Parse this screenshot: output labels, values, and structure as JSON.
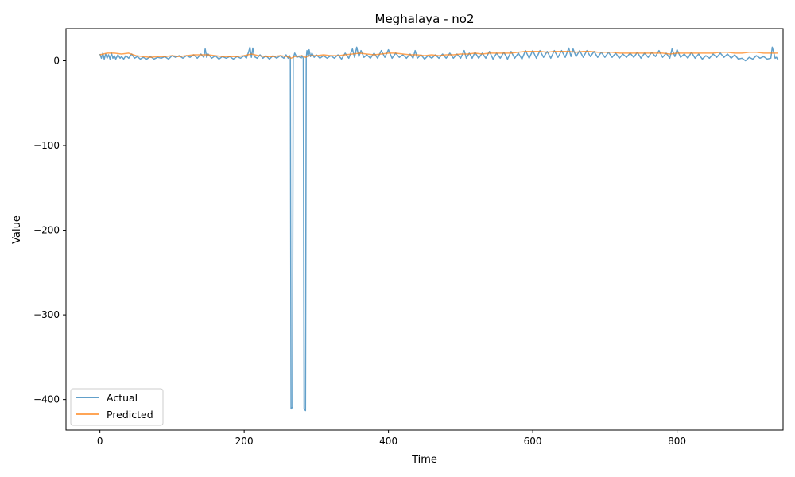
{
  "chart_data": {
    "type": "line",
    "title": "Meghalaya - no2",
    "xlabel": "Time",
    "ylabel": "Value",
    "xlim": [
      -47,
      947
    ],
    "ylim": [
      -436,
      38
    ],
    "x_ticks": [
      0,
      200,
      400,
      600,
      800
    ],
    "y_ticks": [
      0,
      -100,
      -200,
      -300,
      -400
    ],
    "y_tick_labels": [
      "0",
      "−100",
      "−200",
      "−300",
      "−400"
    ],
    "grid": false,
    "legend_position": "lower-left",
    "series": [
      {
        "name": "Actual",
        "color": "#1f77b4",
        "opacity": 0.7,
        "points": [
          [
            0,
            8
          ],
          [
            2,
            3
          ],
          [
            4,
            9
          ],
          [
            6,
            2
          ],
          [
            8,
            8
          ],
          [
            10,
            3
          ],
          [
            12,
            7
          ],
          [
            14,
            2
          ],
          [
            16,
            9
          ],
          [
            18,
            3
          ],
          [
            20,
            6
          ],
          [
            22,
            2
          ],
          [
            25,
            7
          ],
          [
            28,
            3
          ],
          [
            30,
            5
          ],
          [
            33,
            2
          ],
          [
            36,
            6
          ],
          [
            40,
            3
          ],
          [
            44,
            8
          ],
          [
            48,
            3
          ],
          [
            52,
            5
          ],
          [
            56,
            2
          ],
          [
            60,
            4
          ],
          [
            65,
            2
          ],
          [
            70,
            5
          ],
          [
            75,
            2
          ],
          [
            80,
            4
          ],
          [
            85,
            3
          ],
          [
            90,
            5
          ],
          [
            95,
            2
          ],
          [
            100,
            6
          ],
          [
            105,
            4
          ],
          [
            110,
            6
          ],
          [
            115,
            3
          ],
          [
            120,
            6
          ],
          [
            125,
            4
          ],
          [
            130,
            7
          ],
          [
            135,
            3
          ],
          [
            140,
            8
          ],
          [
            144,
            4
          ],
          [
            146,
            14
          ],
          [
            148,
            4
          ],
          [
            150,
            8
          ],
          [
            155,
            3
          ],
          [
            160,
            6
          ],
          [
            165,
            2
          ],
          [
            170,
            5
          ],
          [
            175,
            3
          ],
          [
            180,
            5
          ],
          [
            185,
            2
          ],
          [
            190,
            5
          ],
          [
            195,
            3
          ],
          [
            200,
            6
          ],
          [
            203,
            3
          ],
          [
            206,
            10
          ],
          [
            208,
            16
          ],
          [
            210,
            4
          ],
          [
            212,
            15
          ],
          [
            214,
            5
          ],
          [
            218,
            3
          ],
          [
            222,
            7
          ],
          [
            226,
            3
          ],
          [
            230,
            6
          ],
          [
            235,
            2
          ],
          [
            240,
            6
          ],
          [
            245,
            3
          ],
          [
            250,
            6
          ],
          [
            255,
            3
          ],
          [
            258,
            7
          ],
          [
            261,
            3
          ],
          [
            263,
            6
          ],
          [
            264,
            3
          ],
          [
            265,
            -411
          ],
          [
            267,
            -409
          ],
          [
            268,
            3
          ],
          [
            270,
            9
          ],
          [
            273,
            4
          ],
          [
            276,
            5
          ],
          [
            279,
            3
          ],
          [
            280,
            6
          ],
          [
            282,
            3
          ],
          [
            283,
            -411
          ],
          [
            285,
            -413
          ],
          [
            286,
            3
          ],
          [
            287,
            12
          ],
          [
            289,
            5
          ],
          [
            290,
            13
          ],
          [
            292,
            5
          ],
          [
            294,
            9
          ],
          [
            297,
            4
          ],
          [
            300,
            7
          ],
          [
            305,
            3
          ],
          [
            310,
            6
          ],
          [
            315,
            3
          ],
          [
            320,
            6
          ],
          [
            325,
            3
          ],
          [
            330,
            7
          ],
          [
            335,
            2
          ],
          [
            340,
            9
          ],
          [
            345,
            3
          ],
          [
            350,
            14
          ],
          [
            353,
            4
          ],
          [
            356,
            16
          ],
          [
            359,
            5
          ],
          [
            362,
            12
          ],
          [
            366,
            4
          ],
          [
            370,
            7
          ],
          [
            375,
            3
          ],
          [
            380,
            9
          ],
          [
            385,
            3
          ],
          [
            390,
            12
          ],
          [
            395,
            4
          ],
          [
            400,
            13
          ],
          [
            405,
            3
          ],
          [
            410,
            9
          ],
          [
            415,
            4
          ],
          [
            420,
            7
          ],
          [
            425,
            3
          ],
          [
            430,
            8
          ],
          [
            434,
            3
          ],
          [
            437,
            12
          ],
          [
            440,
            3
          ],
          [
            445,
            7
          ],
          [
            450,
            2
          ],
          [
            455,
            6
          ],
          [
            460,
            3
          ],
          [
            465,
            7
          ],
          [
            470,
            3
          ],
          [
            475,
            8
          ],
          [
            480,
            3
          ],
          [
            485,
            9
          ],
          [
            490,
            3
          ],
          [
            495,
            8
          ],
          [
            500,
            3
          ],
          [
            505,
            12
          ],
          [
            508,
            3
          ],
          [
            512,
            9
          ],
          [
            516,
            3
          ],
          [
            520,
            10
          ],
          [
            525,
            3
          ],
          [
            530,
            9
          ],
          [
            535,
            3
          ],
          [
            540,
            11
          ],
          [
            545,
            2
          ],
          [
            550,
            9
          ],
          [
            555,
            3
          ],
          [
            560,
            10
          ],
          [
            565,
            2
          ],
          [
            570,
            11
          ],
          [
            575,
            3
          ],
          [
            580,
            9
          ],
          [
            585,
            2
          ],
          [
            590,
            12
          ],
          [
            595,
            3
          ],
          [
            600,
            12
          ],
          [
            605,
            3
          ],
          [
            610,
            12
          ],
          [
            615,
            4
          ],
          [
            620,
            11
          ],
          [
            625,
            3
          ],
          [
            630,
            12
          ],
          [
            635,
            4
          ],
          [
            640,
            12
          ],
          [
            645,
            4
          ],
          [
            650,
            15
          ],
          [
            653,
            5
          ],
          [
            656,
            14
          ],
          [
            660,
            5
          ],
          [
            665,
            12
          ],
          [
            670,
            4
          ],
          [
            675,
            12
          ],
          [
            680,
            5
          ],
          [
            685,
            11
          ],
          [
            690,
            4
          ],
          [
            695,
            10
          ],
          [
            700,
            4
          ],
          [
            705,
            10
          ],
          [
            710,
            4
          ],
          [
            715,
            9
          ],
          [
            720,
            3
          ],
          [
            725,
            8
          ],
          [
            730,
            4
          ],
          [
            735,
            9
          ],
          [
            740,
            4
          ],
          [
            745,
            10
          ],
          [
            750,
            3
          ],
          [
            755,
            9
          ],
          [
            760,
            4
          ],
          [
            765,
            10
          ],
          [
            770,
            5
          ],
          [
            775,
            12
          ],
          [
            780,
            4
          ],
          [
            785,
            9
          ],
          [
            790,
            3
          ],
          [
            793,
            14
          ],
          [
            797,
            5
          ],
          [
            800,
            13
          ],
          [
            805,
            4
          ],
          [
            810,
            8
          ],
          [
            815,
            3
          ],
          [
            820,
            10
          ],
          [
            825,
            3
          ],
          [
            830,
            8
          ],
          [
            835,
            2
          ],
          [
            840,
            6
          ],
          [
            845,
            3
          ],
          [
            850,
            8
          ],
          [
            855,
            4
          ],
          [
            860,
            9
          ],
          [
            865,
            4
          ],
          [
            870,
            8
          ],
          [
            875,
            3
          ],
          [
            880,
            7
          ],
          [
            885,
            2
          ],
          [
            890,
            3
          ],
          [
            895,
            0
          ],
          [
            900,
            4
          ],
          [
            905,
            2
          ],
          [
            910,
            6
          ],
          [
            915,
            3
          ],
          [
            920,
            5
          ],
          [
            925,
            2
          ],
          [
            930,
            3
          ],
          [
            932,
            16
          ],
          [
            934,
            10
          ],
          [
            936,
            3
          ],
          [
            938,
            4
          ],
          [
            940,
            1
          ]
        ]
      },
      {
        "name": "Predicted",
        "color": "#ff7f0e",
        "opacity": 0.7,
        "points": [
          [
            0,
            7
          ],
          [
            10,
            9
          ],
          [
            20,
            9
          ],
          [
            30,
            8
          ],
          [
            40,
            9
          ],
          [
            50,
            6
          ],
          [
            60,
            5
          ],
          [
            70,
            4
          ],
          [
            80,
            5
          ],
          [
            90,
            5
          ],
          [
            100,
            6
          ],
          [
            110,
            5
          ],
          [
            120,
            6
          ],
          [
            130,
            7
          ],
          [
            140,
            7
          ],
          [
            150,
            7
          ],
          [
            160,
            6
          ],
          [
            170,
            5
          ],
          [
            180,
            5
          ],
          [
            190,
            5
          ],
          [
            200,
            6
          ],
          [
            210,
            8
          ],
          [
            220,
            6
          ],
          [
            230,
            5
          ],
          [
            240,
            5
          ],
          [
            250,
            6
          ],
          [
            260,
            5
          ],
          [
            265,
            3
          ],
          [
            270,
            5
          ],
          [
            280,
            6
          ],
          [
            285,
            4
          ],
          [
            290,
            6
          ],
          [
            300,
            6
          ],
          [
            310,
            7
          ],
          [
            320,
            6
          ],
          [
            330,
            6
          ],
          [
            340,
            7
          ],
          [
            350,
            8
          ],
          [
            360,
            9
          ],
          [
            370,
            8
          ],
          [
            380,
            7
          ],
          [
            390,
            8
          ],
          [
            400,
            9
          ],
          [
            410,
            9
          ],
          [
            420,
            8
          ],
          [
            430,
            7
          ],
          [
            440,
            7
          ],
          [
            450,
            6
          ],
          [
            460,
            7
          ],
          [
            470,
            6
          ],
          [
            480,
            7
          ],
          [
            490,
            7
          ],
          [
            500,
            8
          ],
          [
            510,
            8
          ],
          [
            520,
            9
          ],
          [
            530,
            8
          ],
          [
            540,
            9
          ],
          [
            550,
            9
          ],
          [
            560,
            9
          ],
          [
            570,
            9
          ],
          [
            580,
            10
          ],
          [
            590,
            11
          ],
          [
            600,
            11
          ],
          [
            610,
            11
          ],
          [
            620,
            10
          ],
          [
            630,
            11
          ],
          [
            640,
            11
          ],
          [
            650,
            11
          ],
          [
            660,
            10
          ],
          [
            670,
            11
          ],
          [
            680,
            11
          ],
          [
            690,
            10
          ],
          [
            700,
            10
          ],
          [
            710,
            10
          ],
          [
            720,
            9
          ],
          [
            730,
            9
          ],
          [
            740,
            9
          ],
          [
            750,
            9
          ],
          [
            760,
            9
          ],
          [
            770,
            9
          ],
          [
            780,
            9
          ],
          [
            790,
            8
          ],
          [
            800,
            9
          ],
          [
            810,
            9
          ],
          [
            820,
            9
          ],
          [
            830,
            9
          ],
          [
            840,
            9
          ],
          [
            850,
            9
          ],
          [
            860,
            10
          ],
          [
            870,
            10
          ],
          [
            880,
            9
          ],
          [
            890,
            9
          ],
          [
            900,
            10
          ],
          [
            910,
            10
          ],
          [
            920,
            9
          ],
          [
            930,
            9
          ],
          [
            940,
            9
          ]
        ]
      }
    ]
  }
}
